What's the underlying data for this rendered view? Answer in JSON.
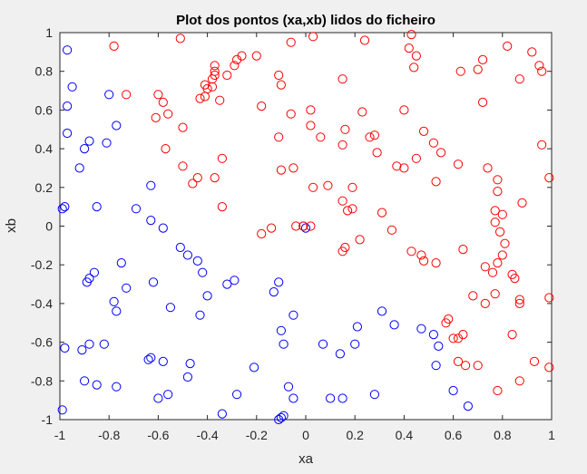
{
  "chart_data": {
    "type": "scatter",
    "title": "Plot dos pontos (xa,xb) lidos do ficheiro",
    "xlabel": "xa",
    "ylabel": "xb",
    "xlim": [
      -1,
      1
    ],
    "ylim": [
      -1,
      1
    ],
    "xticks": [
      -1,
      -0.8,
      -0.6,
      -0.4,
      -0.2,
      0,
      0.2,
      0.4,
      0.6,
      0.8,
      1
    ],
    "yticks": [
      -1,
      -0.8,
      -0.6,
      -0.4,
      -0.2,
      0,
      0.2,
      0.4,
      0.6,
      0.8,
      1
    ],
    "xtick_labels": [
      "-1",
      "-0.8",
      "-0.6",
      "-0.4",
      "-0.2",
      "0",
      "0.2",
      "0.4",
      "0.6",
      "0.8",
      "1"
    ],
    "ytick_labels": [
      "-1",
      "-0.8",
      "-0.6",
      "-0.4",
      "-0.2",
      "0",
      "0.2",
      "0.4",
      "0.6",
      "0.8",
      "1"
    ],
    "grid": false,
    "marker": "circle-open",
    "series": [
      {
        "color": "#0000ff",
        "points": [
          [
            -0.97,
            0.91
          ],
          [
            -0.95,
            0.72
          ],
          [
            -0.97,
            0.62
          ],
          [
            -0.97,
            0.48
          ],
          [
            -0.9,
            0.4
          ],
          [
            -0.88,
            0.44
          ],
          [
            -0.92,
            0.3
          ],
          [
            -0.8,
            0.68
          ],
          [
            -0.77,
            0.52
          ],
          [
            -0.81,
            0.43
          ],
          [
            -0.98,
            0.1
          ],
          [
            -0.99,
            0.09
          ],
          [
            -0.85,
            0.1
          ],
          [
            -0.63,
            0.21
          ],
          [
            -0.69,
            0.09
          ],
          [
            -0.63,
            0.03
          ],
          [
            -0.58,
            -0.01
          ],
          [
            -0.51,
            -0.11
          ],
          [
            -0.48,
            -0.15
          ],
          [
            -0.44,
            -0.18
          ],
          [
            -0.42,
            -0.24
          ],
          [
            -0.75,
            -0.19
          ],
          [
            -0.73,
            -0.32
          ],
          [
            -0.78,
            -0.39
          ],
          [
            -0.77,
            -0.44
          ],
          [
            -0.62,
            -0.29
          ],
          [
            -0.55,
            -0.42
          ],
          [
            -0.4,
            -0.36
          ],
          [
            -0.43,
            -0.46
          ],
          [
            -0.32,
            -0.3
          ],
          [
            -0.29,
            -0.28
          ],
          [
            -0.13,
            -0.34
          ],
          [
            -0.11,
            -0.29
          ],
          [
            -0.1,
            -0.54
          ],
          [
            -0.09,
            -0.61
          ],
          [
            -0.05,
            -0.46
          ],
          [
            -0.07,
            -0.83
          ],
          [
            -0.1,
            -0.99
          ],
          [
            -0.09,
            -0.98
          ],
          [
            -0.11,
            -1.0
          ],
          [
            -0.88,
            -0.27
          ],
          [
            -0.89,
            -0.29
          ],
          [
            -0.86,
            -0.24
          ],
          [
            -0.98,
            -0.63
          ],
          [
            -0.91,
            -0.64
          ],
          [
            -0.88,
            -0.61
          ],
          [
            -0.82,
            -0.61
          ],
          [
            -0.9,
            -0.8
          ],
          [
            -0.85,
            -0.82
          ],
          [
            -0.77,
            -0.83
          ],
          [
            -0.64,
            -0.69
          ],
          [
            -0.63,
            -0.68
          ],
          [
            -0.58,
            -0.7
          ],
          [
            -0.6,
            -0.89
          ],
          [
            -0.56,
            -0.87
          ],
          [
            -0.48,
            -0.78
          ],
          [
            -0.47,
            -0.71
          ],
          [
            -0.34,
            -0.97
          ],
          [
            -0.28,
            -0.87
          ],
          [
            -0.21,
            -0.73
          ],
          [
            -0.99,
            -0.95
          ],
          [
            -0.05,
            -0.89
          ],
          [
            0.07,
            -0.61
          ],
          [
            0.14,
            -0.66
          ],
          [
            0.2,
            -0.61
          ],
          [
            0.21,
            -0.52
          ],
          [
            0.1,
            -0.89
          ],
          [
            0.15,
            -0.89
          ],
          [
            0.28,
            -0.87
          ],
          [
            0.31,
            -0.44
          ],
          [
            0.36,
            -0.51
          ],
          [
            0.47,
            -0.53
          ],
          [
            0.52,
            -0.56
          ],
          [
            0.54,
            -0.62
          ],
          [
            0.53,
            -0.72
          ],
          [
            0.6,
            -0.85
          ],
          [
            0.66,
            -0.93
          ],
          [
            -0.01,
            0.0
          ],
          [
            0.0,
            -0.01
          ]
        ]
      },
      {
        "color": "#ff0000",
        "points": [
          [
            -0.78,
            0.93
          ],
          [
            -0.73,
            0.68
          ],
          [
            -0.51,
            0.97
          ],
          [
            -0.6,
            0.68
          ],
          [
            -0.58,
            0.64
          ],
          [
            -0.56,
            0.58
          ],
          [
            -0.61,
            0.56
          ],
          [
            -0.5,
            0.51
          ],
          [
            -0.57,
            0.4
          ],
          [
            -0.43,
            0.66
          ],
          [
            -0.41,
            0.67
          ],
          [
            -0.4,
            0.71
          ],
          [
            -0.38,
            0.72
          ],
          [
            -0.38,
            0.76
          ],
          [
            -0.37,
            0.78
          ],
          [
            -0.37,
            0.8
          ],
          [
            -0.37,
            0.83
          ],
          [
            -0.32,
            0.78
          ],
          [
            -0.29,
            0.83
          ],
          [
            -0.28,
            0.86
          ],
          [
            -0.26,
            0.88
          ],
          [
            -0.35,
            0.65
          ],
          [
            -0.41,
            0.73
          ],
          [
            -0.2,
            0.88
          ],
          [
            -0.18,
            0.62
          ],
          [
            -0.11,
            0.78
          ],
          [
            -0.1,
            0.73
          ],
          [
            -0.06,
            0.95
          ],
          [
            -0.06,
            0.58
          ],
          [
            0.03,
            0.98
          ],
          [
            0.02,
            0.6
          ],
          [
            0.02,
            0.52
          ],
          [
            0.06,
            0.46
          ],
          [
            -0.34,
            0.35
          ],
          [
            -0.5,
            0.31
          ],
          [
            -0.46,
            0.22
          ],
          [
            -0.44,
            0.25
          ],
          [
            -0.37,
            0.25
          ],
          [
            -0.1,
            0.29
          ],
          [
            -0.05,
            0.3
          ],
          [
            -0.11,
            0.46
          ],
          [
            -0.34,
            0.1
          ],
          [
            -0.04,
            0.0
          ],
          [
            -0.01,
            0.0
          ],
          [
            -0.14,
            -0.01
          ],
          [
            -0.18,
            -0.04
          ],
          [
            0.02,
            0.0
          ],
          [
            0.03,
            0.2
          ],
          [
            0.09,
            0.21
          ],
          [
            0.15,
            0.42
          ],
          [
            0.16,
            0.5
          ],
          [
            0.15,
            0.76
          ],
          [
            0.24,
            0.96
          ],
          [
            0.23,
            0.59
          ],
          [
            0.28,
            0.47
          ],
          [
            0.26,
            0.46
          ],
          [
            0.29,
            0.38
          ],
          [
            0.15,
            0.13
          ],
          [
            0.19,
            0.2
          ],
          [
            0.19,
            0.09
          ],
          [
            0.17,
            0.08
          ],
          [
            0.16,
            -0.11
          ],
          [
            0.15,
            -0.13
          ],
          [
            0.22,
            -0.07
          ],
          [
            0.31,
            0.07
          ],
          [
            0.35,
            -0.02
          ],
          [
            0.37,
            0.31
          ],
          [
            0.4,
            0.3
          ],
          [
            0.4,
            0.6
          ],
          [
            0.43,
            0.99
          ],
          [
            0.42,
            0.92
          ],
          [
            0.45,
            0.88
          ],
          [
            0.44,
            0.82
          ],
          [
            0.48,
            0.49
          ],
          [
            0.45,
            0.35
          ],
          [
            0.52,
            0.43
          ],
          [
            0.55,
            0.38
          ],
          [
            0.53,
            0.23
          ],
          [
            0.62,
            0.32
          ],
          [
            0.63,
            0.8
          ],
          [
            0.7,
            0.81
          ],
          [
            0.72,
            0.86
          ],
          [
            0.72,
            0.64
          ],
          [
            0.82,
            0.93
          ],
          [
            0.87,
            0.76
          ],
          [
            0.92,
            0.9
          ],
          [
            0.95,
            0.83
          ],
          [
            0.96,
            0.8
          ],
          [
            0.96,
            0.42
          ],
          [
            0.99,
            0.25
          ],
          [
            0.78,
            0.24
          ],
          [
            0.74,
            0.3
          ],
          [
            0.78,
            0.18
          ],
          [
            0.77,
            0.08
          ],
          [
            0.8,
            0.06
          ],
          [
            0.77,
            0.02
          ],
          [
            0.79,
            -0.03
          ],
          [
            0.81,
            -0.09
          ],
          [
            0.8,
            -0.15
          ],
          [
            0.78,
            -0.19
          ],
          [
            0.73,
            -0.21
          ],
          [
            0.76,
            -0.24
          ],
          [
            0.84,
            -0.25
          ],
          [
            0.85,
            -0.27
          ],
          [
            0.87,
            -0.38
          ],
          [
            0.87,
            -0.4
          ],
          [
            0.99,
            -0.37
          ],
          [
            0.84,
            -0.56
          ],
          [
            0.77,
            -0.35
          ],
          [
            0.73,
            -0.4
          ],
          [
            0.68,
            -0.36
          ],
          [
            0.64,
            -0.56
          ],
          [
            0.62,
            -0.58
          ],
          [
            0.6,
            -0.58
          ],
          [
            0.58,
            -0.48
          ],
          [
            0.57,
            -0.5
          ],
          [
            0.47,
            -0.15
          ],
          [
            0.48,
            -0.18
          ],
          [
            0.53,
            -0.19
          ],
          [
            0.43,
            -0.13
          ],
          [
            0.64,
            -0.12
          ],
          [
            0.62,
            -0.7
          ],
          [
            0.65,
            -0.72
          ],
          [
            0.7,
            -0.72
          ],
          [
            0.78,
            -0.85
          ],
          [
            0.87,
            -0.8
          ],
          [
            0.93,
            -0.7
          ],
          [
            0.99,
            -0.73
          ],
          [
            0.88,
            0.12
          ]
        ]
      }
    ]
  }
}
